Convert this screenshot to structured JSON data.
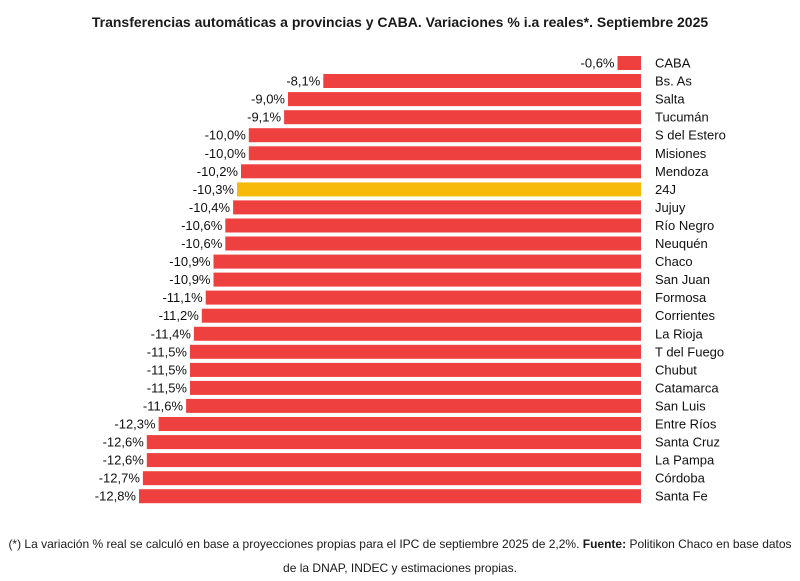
{
  "chart_data": {
    "type": "bar",
    "orientation": "horizontal",
    "title": "Transferencias automáticas a provincias y CABA. Variaciones % i.a reales*. Septiembre 2025",
    "categories": [
      "CABA",
      "Bs. As",
      "Salta",
      "Tucumán",
      "S del Estero",
      "Misiones",
      "Mendoza",
      "24J",
      "Jujuy",
      "Río Negro",
      "Neuquén",
      "Chaco",
      "San Juan",
      "Formosa",
      "Corrientes",
      "La Rioja",
      "T del Fuego",
      "Chubut",
      "Catamarca",
      "San Luis",
      "Entre Ríos",
      "Santa Cruz",
      "La Pampa",
      "Córdoba",
      "Santa Fe"
    ],
    "values": [
      -0.6,
      -8.1,
      -9.0,
      -9.1,
      -10.0,
      -10.0,
      -10.2,
      -10.3,
      -10.4,
      -10.6,
      -10.6,
      -10.9,
      -10.9,
      -11.1,
      -11.2,
      -11.4,
      -11.5,
      -11.5,
      -11.5,
      -11.6,
      -12.3,
      -12.6,
      -12.6,
      -12.7,
      -12.8
    ],
    "value_labels": [
      "-0,6%",
      "-8,1%",
      "-9,0%",
      "-9,1%",
      "-10,0%",
      "-10,0%",
      "-10,2%",
      "-10,3%",
      "-10,4%",
      "-10,6%",
      "-10,6%",
      "-10,9%",
      "-10,9%",
      "-11,1%",
      "-11,2%",
      "-11,4%",
      "-11,5%",
      "-11,5%",
      "-11,5%",
      "-11,6%",
      "-12,3%",
      "-12,6%",
      "-12,6%",
      "-12,7%",
      "-12,8%"
    ],
    "colors": {
      "default": "#ef4040",
      "highlight": "#f7b90a"
    },
    "highlight_category": "24J",
    "xlim": [
      -12.8,
      0
    ],
    "grid": false,
    "legend": "none"
  },
  "footnote": {
    "part1": "(*) La variación % real se calculó en base a proyecciones propias para el IPC de septiembre 2025 de 2,2%. ",
    "source_label": "Fuente:",
    "part2": " Politikon Chaco en base datos de la DNAP, INDEC y estimaciones propias."
  }
}
